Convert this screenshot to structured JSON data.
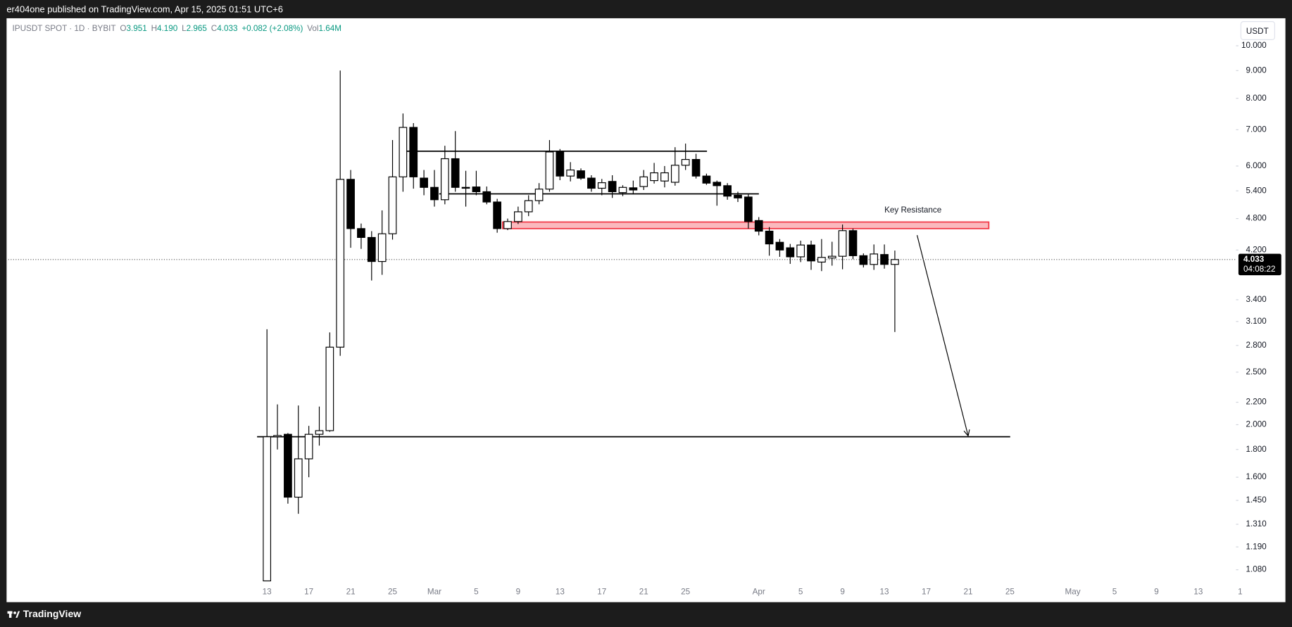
{
  "header": {
    "publisher": "er404one published on TradingView.com, Apr 15, 2025 01:51 UTC+6",
    "symbol": "IPUSDT SPOT · 1D · BYBIT",
    "o_label": "O",
    "o": "3.951",
    "h_label": "H",
    "h": "4.190",
    "l_label": "L",
    "l": "2.965",
    "c_label": "C",
    "c": "4.033",
    "change": "+0.082 (+2.08%)",
    "vol_label": "Vol",
    "vol": "1.64M",
    "currency": "USDT"
  },
  "footer": {
    "brand": "TradingView"
  },
  "chart_data": {
    "type": "candlestick",
    "log_scale": true,
    "up_color": "#ffffff",
    "down_color": "#000000",
    "edge_color": "#000000",
    "categories": [
      "13",
      null,
      null,
      null,
      "17",
      null,
      null,
      null,
      "21",
      null,
      null,
      null,
      "25",
      null,
      null,
      null,
      "Mar",
      null,
      null,
      null,
      "5",
      null,
      null,
      null,
      "9",
      null,
      null,
      null,
      "13",
      null,
      null,
      null,
      "17",
      null,
      null,
      null,
      "21",
      null,
      null,
      null,
      "25",
      null,
      null,
      null,
      null,
      null,
      null,
      "Apr",
      null,
      null,
      null,
      "5",
      null,
      null,
      null,
      "9",
      null,
      null,
      null,
      "13",
      null,
      null,
      null,
      "17",
      null,
      null,
      null,
      "21",
      null,
      null,
      null,
      "25",
      null,
      null,
      null,
      null,
      null,
      "May",
      null,
      null,
      null,
      "5",
      null,
      null,
      null,
      "9",
      null,
      null,
      null,
      "13",
      null,
      null,
      null,
      "1"
    ],
    "open": [
      1.03,
      1.9,
      1.92,
      1.47,
      1.73,
      1.92,
      1.95,
      2.78,
      5.67,
      4.6,
      4.43,
      4.0,
      4.5,
      5.73,
      7.07,
      5.7,
      5.48,
      5.2,
      6.19,
      5.48,
      5.49,
      5.38,
      5.15,
      4.6,
      4.74,
      4.94,
      5.18,
      5.44,
      6.37,
      5.75,
      5.88,
      5.7,
      5.46,
      5.62,
      5.36,
      5.47,
      5.5,
      5.64,
      5.63,
      5.6,
      6.02,
      6.17,
      5.75,
      5.6,
      5.52,
      5.3,
      5.26,
      4.76,
      4.55,
      4.34,
      4.24,
      4.08,
      4.29,
      3.99,
      4.06,
      4.09,
      4.56,
      4.1,
      3.95,
      4.12,
      3.951,
      null,
      null,
      null,
      null,
      null,
      null,
      null,
      null,
      null,
      null,
      null,
      null,
      null,
      null,
      null,
      null,
      null,
      null,
      null,
      null,
      null,
      null,
      null,
      null,
      null,
      null,
      null,
      null,
      null,
      null,
      null,
      null,
      null
    ],
    "high": [
      3.0,
      2.18,
      1.93,
      2.17,
      1.99,
      2.16,
      2.96,
      9.0,
      5.9,
      4.7,
      4.55,
      4.97,
      6.7,
      7.5,
      7.2,
      5.9,
      5.9,
      6.54,
      6.96,
      5.88,
      5.88,
      5.5,
      5.22,
      4.8,
      5.05,
      5.3,
      5.58,
      6.7,
      6.45,
      6.1,
      5.94,
      5.77,
      5.68,
      5.77,
      5.53,
      5.64,
      5.9,
      6.08,
      6.0,
      6.5,
      6.6,
      6.32,
      5.81,
      5.64,
      5.58,
      5.38,
      5.32,
      4.83,
      4.63,
      4.4,
      4.31,
      4.37,
      4.37,
      4.4,
      4.35,
      4.68,
      4.6,
      4.14,
      4.3,
      4.3,
      4.19,
      null,
      null,
      null,
      null,
      null,
      null,
      null,
      null,
      null,
      null,
      null,
      null,
      null,
      null,
      null,
      null,
      null,
      null,
      null,
      null,
      null,
      null,
      null,
      null,
      null,
      null,
      null,
      null,
      null,
      null,
      null,
      null,
      null
    ],
    "low": [
      1.03,
      1.8,
      1.43,
      1.37,
      1.6,
      1.83,
      1.94,
      2.68,
      4.24,
      4.22,
      3.69,
      3.78,
      4.39,
      5.38,
      5.45,
      5.3,
      5.05,
      5.1,
      5.38,
      5.05,
      5.3,
      5.1,
      4.52,
      4.57,
      4.69,
      4.85,
      5.1,
      5.38,
      5.65,
      5.62,
      5.66,
      5.38,
      5.3,
      5.24,
      5.28,
      5.32,
      5.42,
      5.57,
      5.48,
      5.52,
      5.9,
      5.69,
      5.54,
      5.07,
      5.2,
      5.15,
      4.6,
      4.47,
      4.1,
      4.08,
      3.96,
      3.99,
      3.86,
      3.84,
      3.93,
      3.87,
      4.04,
      3.9,
      3.86,
      3.88,
      2.965,
      null,
      null,
      null,
      null,
      null,
      null,
      null,
      null,
      null,
      null,
      null,
      null,
      null,
      null,
      null,
      null,
      null,
      null,
      null,
      null,
      null,
      null,
      null,
      null,
      null,
      null,
      null,
      null,
      null,
      null,
      null,
      null,
      null
    ],
    "close": [
      1.9,
      1.91,
      1.47,
      1.73,
      1.92,
      1.95,
      2.78,
      5.67,
      4.6,
      4.43,
      4.0,
      4.5,
      5.73,
      7.07,
      5.73,
      5.48,
      5.2,
      6.19,
      5.48,
      5.46,
      5.38,
      5.15,
      4.6,
      4.74,
      4.94,
      5.18,
      5.44,
      6.37,
      5.75,
      5.9,
      5.7,
      5.46,
      5.59,
      5.38,
      5.48,
      5.42,
      5.73,
      5.83,
      5.83,
      6.02,
      6.17,
      5.75,
      5.58,
      5.52,
      5.28,
      5.24,
      4.74,
      4.55,
      4.31,
      4.2,
      4.08,
      4.29,
      4.01,
      4.07,
      4.09,
      4.56,
      4.1,
      3.95,
      4.13,
      3.951,
      4.033,
      null,
      null,
      null,
      null,
      null,
      null,
      null,
      null,
      null,
      null,
      null,
      null,
      null,
      null,
      null,
      null,
      null,
      null,
      null,
      null,
      null,
      null,
      null,
      null,
      null,
      null,
      null,
      null,
      null,
      null,
      null,
      null,
      null
    ],
    "ylim": [
      1.02,
      11.2
    ],
    "yticks": [
      {
        "value": 10,
        "label": "10.000"
      },
      {
        "value": 9,
        "label": "9.000"
      },
      {
        "value": 8,
        "label": "8.000"
      },
      {
        "value": 7,
        "label": "7.000"
      },
      {
        "value": 6,
        "label": "6.000"
      },
      {
        "value": 5.4,
        "label": "5.400"
      },
      {
        "value": 4.8,
        "label": "4.800"
      },
      {
        "value": 4.2,
        "label": "4.200"
      },
      {
        "value": 3.4,
        "label": "3.400"
      },
      {
        "value": 3.1,
        "label": "3.100"
      },
      {
        "value": 2.8,
        "label": "2.800"
      },
      {
        "value": 2.5,
        "label": "2.500"
      },
      {
        "value": 2.2,
        "label": "2.200"
      },
      {
        "value": 2,
        "label": "2.000"
      },
      {
        "value": 1.8,
        "label": "1.800"
      },
      {
        "value": 1.6,
        "label": "1.600"
      },
      {
        "value": 1.45,
        "label": "1.450"
      },
      {
        "value": 1.31,
        "label": "1.310"
      },
      {
        "value": 1.19,
        "label": "1.190"
      },
      {
        "value": 1.08,
        "label": "1.080"
      }
    ],
    "last_price": {
      "value": 4.033,
      "label": "4.033"
    },
    "countdown": "04:08:22",
    "levels": [
      6.39,
      5.33,
      1.9
    ],
    "zone": [
      4.6,
      4.73
    ],
    "zone_color": "#f23645",
    "annotation": "Key Resistance"
  }
}
